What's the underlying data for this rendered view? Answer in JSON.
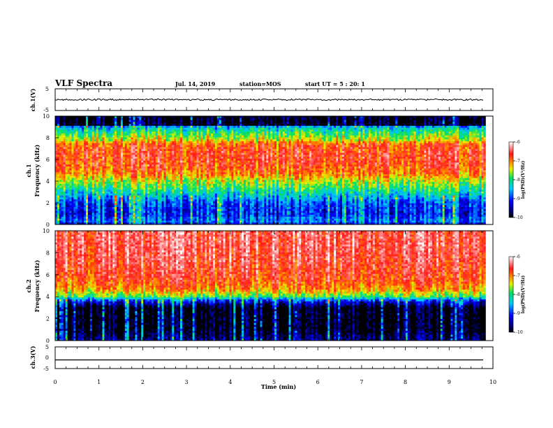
{
  "header": {
    "title": "VLF Spectra",
    "date": "Jul. 14, 2019",
    "station": "station=MOS",
    "start": "start UT =  5 : 20: 1"
  },
  "chart_data": [
    {
      "type": "line",
      "panel": "ch1-waveform",
      "ylabel": "ch.1(V)",
      "ylim": [
        -5,
        5
      ],
      "yticks": [
        5,
        -5
      ],
      "series": [
        {
          "values_description": "flat near 0 V",
          "level": 0.0
        }
      ]
    },
    {
      "type": "heatmap",
      "panel": "ch1-spectrogram",
      "ylabel": "ch.1\nFrequency (kHz)",
      "ylabel_line1": "ch.1",
      "ylabel_line2": "Frequency (kHz)",
      "ylim": [
        0,
        10
      ],
      "yticks": [
        0,
        2,
        4,
        6,
        8,
        10
      ],
      "xlim": [
        0,
        10
      ],
      "colorbar": {
        "label": "log(PSD)(V²/Hz)",
        "ticks": [
          -6,
          -7,
          -8,
          -9,
          -10
        ],
        "range": [
          -10,
          -6
        ]
      },
      "profile_khz_log10psd": [
        [
          0.0,
          -9.4
        ],
        [
          0.3,
          -8.8
        ],
        [
          1.0,
          -9.2
        ],
        [
          2.0,
          -9.0
        ],
        [
          3.0,
          -8.3
        ],
        [
          4.0,
          -7.7
        ],
        [
          4.6,
          -7.2
        ],
        [
          5.5,
          -6.9
        ],
        [
          6.5,
          -6.8
        ],
        [
          7.4,
          -7.0
        ],
        [
          7.8,
          -7.6
        ],
        [
          8.5,
          -8.1
        ],
        [
          9.0,
          -8.6
        ],
        [
          9.2,
          -10.0
        ],
        [
          10.0,
          -10.0
        ]
      ]
    },
    {
      "type": "heatmap",
      "panel": "ch2-spectrogram",
      "ylabel": "ch.2\nFrequency (kHz)",
      "ylabel_line1": "ch.2",
      "ylabel_line2": "Frequency (kHz)",
      "ylim": [
        0,
        10
      ],
      "yticks": [
        0,
        2,
        4,
        6,
        8,
        10
      ],
      "xlim": [
        0,
        10
      ],
      "colorbar": {
        "label": "log(PSD)(V²/Hz)",
        "ticks": [
          -6,
          -7,
          -8,
          -9,
          -10
        ],
        "range": [
          -10,
          -6
        ]
      },
      "profile_khz_log10psd": [
        [
          0.0,
          -9.6
        ],
        [
          1.0,
          -10.0
        ],
        [
          3.0,
          -10.0
        ],
        [
          3.6,
          -9.2
        ],
        [
          4.0,
          -8.0
        ],
        [
          4.6,
          -7.3
        ],
        [
          5.5,
          -6.9
        ],
        [
          7.0,
          -6.7
        ],
        [
          8.5,
          -6.6
        ],
        [
          10.0,
          -6.6
        ]
      ]
    },
    {
      "type": "line",
      "panel": "ch3-waveform",
      "ylabel": "ch.3(V)",
      "ylim": [
        -5,
        5
      ],
      "yticks": [
        5,
        0,
        -5
      ],
      "series": [
        {
          "values_description": "flat line",
          "level": -1.0
        }
      ]
    }
  ],
  "xaxis": {
    "label": "Time (min)",
    "range": [
      0,
      10
    ],
    "ticks": [
      0,
      1,
      2,
      3,
      4,
      5,
      6,
      7,
      8,
      9,
      10
    ],
    "data_end": 9.83
  }
}
